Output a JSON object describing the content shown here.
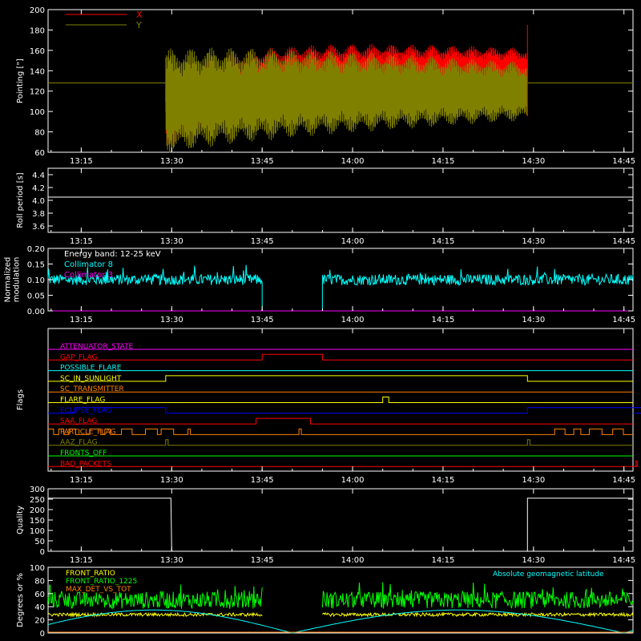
{
  "chart_data": [
    {
      "type": "line",
      "ylabel": "Pointing [\"]",
      "ylim": [
        60,
        200
      ],
      "yticks": [
        60,
        80,
        100,
        120,
        140,
        160,
        180,
        200
      ],
      "xticks": [
        "13:15",
        "13:30",
        "13:45",
        "14:00",
        "14:15",
        "14:30",
        "14:45"
      ],
      "xlim_minutes": [
        0,
        97
      ],
      "legend": [
        {
          "name": "X",
          "color": "#ff0000"
        },
        {
          "name": "Y",
          "color": "#808000"
        }
      ],
      "series": [
        {
          "name": "X",
          "color": "#ff0000",
          "t_start": "13:29",
          "t_end": "14:29",
          "center_start": 100,
          "center_end": 140,
          "amplitude_start": 35,
          "amplitude_end": 20
        },
        {
          "name": "Y",
          "color": "#808000",
          "t_start": "13:29",
          "t_end": "14:29",
          "center_start": 110,
          "center_end": 120,
          "amplitude_start": 45,
          "amplitude_end": 25,
          "baseline": 128
        }
      ]
    },
    {
      "type": "line",
      "ylabel": "Roll period [s]",
      "ylim": [
        3.5,
        4.5
      ],
      "yticks": [
        3.6,
        3.8,
        4.0,
        4.2,
        4.4
      ],
      "xticks": [
        "13:15",
        "13:30",
        "13:45",
        "14:00",
        "14:15",
        "14:30",
        "14:45"
      ],
      "series": [
        {
          "name": "Roll period",
          "color": "#ffffff",
          "value": 4.05
        }
      ]
    },
    {
      "type": "line",
      "ylabel": "Normalized modulation",
      "ylim": [
        0,
        0.2
      ],
      "yticks": [
        0.0,
        0.05,
        0.1,
        0.15,
        0.2
      ],
      "xticks": [
        "13:15",
        "13:30",
        "13:45",
        "14:00",
        "14:15",
        "14:30",
        "14:45"
      ],
      "annotation": "Energy band: 12-25 keV",
      "legend": [
        {
          "name": "Collimator 8",
          "color": "#00ffff"
        },
        {
          "name": "Collimator 3",
          "color": "#ff00ff"
        }
      ],
      "series": [
        {
          "name": "Collimator 8",
          "color": "#00ffff",
          "mean": 0.1,
          "gap_start": "13:45",
          "gap_end": "13:55"
        },
        {
          "name": "Collimator 3",
          "color": "#ff00ff",
          "value": 0.0
        }
      ]
    },
    {
      "type": "line",
      "ylabel": "Flags",
      "xticks": [
        "13:15",
        "13:30",
        "13:45",
        "14:00",
        "14:15",
        "14:30",
        "14:45"
      ],
      "series": [
        {
          "name": "ATTENUATOR_STATE",
          "color": "#ff00ff",
          "on": []
        },
        {
          "name": "GAP_FLAG",
          "color": "#ff0000",
          "on": [
            [
              "13:45",
              "13:55"
            ]
          ]
        },
        {
          "name": "POSSIBLE_FLARE",
          "color": "#00ffff",
          "on": []
        },
        {
          "name": "SC_IN_SUNLIGHT",
          "color": "#ffff00",
          "on": [
            [
              "13:29",
              "14:29"
            ]
          ]
        },
        {
          "name": "SC_TRANSMITTER",
          "color": "#ff8000",
          "on": []
        },
        {
          "name": "FLARE_FLAG",
          "color": "#ffff00",
          "on": [
            [
              "14:05",
              "14:06"
            ]
          ]
        },
        {
          "name": "ECLIPSE_FLAG",
          "color": "#0000ff",
          "on": [
            [
              "13:14",
              "13:29"
            ],
            [
              "14:29",
              "14:52"
            ]
          ]
        },
        {
          "name": "SAA_FLAG",
          "color": "#ff0000",
          "on": [
            [
              "13:44",
              "13:53"
            ]
          ]
        },
        {
          "name": "PARTICLE_FLAG",
          "color": "#ff8000",
          "on": []
        },
        {
          "name": "AAZ_FLAG",
          "color": "#808000",
          "on": [
            [
              "13:29",
              "13:29.4"
            ],
            [
              "14:29",
              "14:29.4"
            ]
          ]
        },
        {
          "name": "FRONTS_OFF",
          "color": "#00ff00",
          "on": []
        },
        {
          "name": "BAD_PACKETS",
          "color": "#ff0000",
          "on": [
            [
              "14:47",
              "14:47.2"
            ]
          ]
        }
      ]
    },
    {
      "type": "line",
      "ylabel": "Quality",
      "ylim": [
        0,
        300
      ],
      "yticks": [
        0,
        50,
        100,
        150,
        200,
        250,
        300
      ],
      "xticks": [
        "13:15",
        "13:30",
        "13:45",
        "14:00",
        "14:15",
        "14:30",
        "14:45"
      ],
      "series": [
        {
          "name": "Quality",
          "color": "#ffffff",
          "high": 255,
          "low": 0,
          "low_start": "13:30",
          "low_end": "14:29"
        }
      ]
    },
    {
      "type": "line",
      "ylabel": "Degrees or %",
      "ylim": [
        0,
        100
      ],
      "yticks": [
        0,
        20,
        40,
        60,
        80,
        100
      ],
      "legend": [
        {
          "name": "FRONT_RATIO",
          "color": "#ffff00"
        },
        {
          "name": "FRONT_RATIO_1225",
          "color": "#00ff00"
        },
        {
          "name": "MAX_DET_VS_TOT",
          "color": "#ff8000"
        },
        {
          "name": "Absolute geomagnetic latitude",
          "color": "#00ffff"
        }
      ],
      "series": [
        {
          "name": "FRONT_RATIO",
          "color": "#ffff00",
          "mean": 28
        },
        {
          "name": "FRONT_RATIO_1225",
          "color": "#00ff00",
          "mean": 50
        },
        {
          "name": "MAX_DET_VS_TOT",
          "color": "#ff8000",
          "value": 0
        },
        {
          "name": "Absolute geomagnetic latitude",
          "color": "#00ffff",
          "valley_times": [
            "13:50",
            "14:45"
          ],
          "peak": 35
        }
      ]
    }
  ]
}
